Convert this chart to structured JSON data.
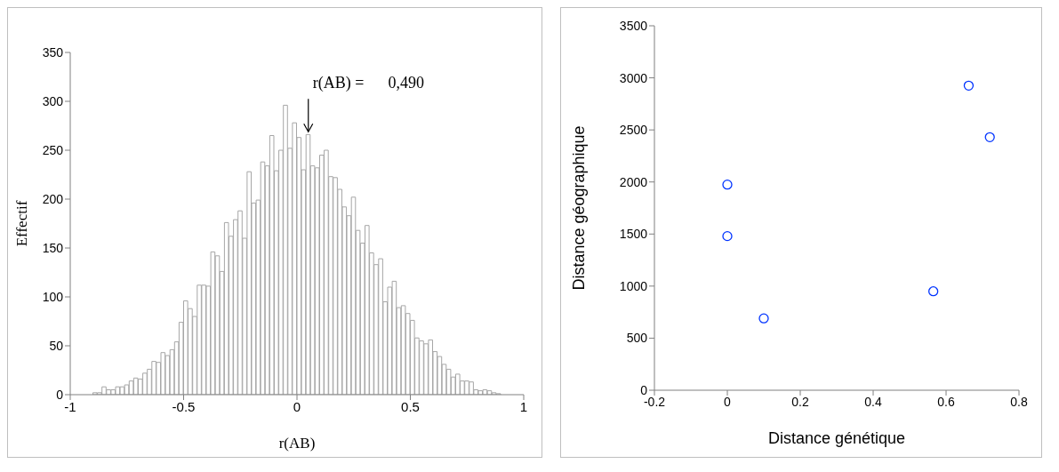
{
  "chart_data": [
    {
      "type": "histogram",
      "xlabel": "r(AB)",
      "ylabel": "Effectif",
      "color": "#a6a6a6",
      "bins": [
        -1,
        -0.98,
        -0.96,
        -0.94,
        -0.92,
        -0.9,
        -0.88,
        -0.86,
        -0.84,
        -0.82,
        -0.8,
        -0.78,
        -0.76,
        -0.74,
        -0.72,
        -0.7,
        -0.68,
        -0.66,
        -0.64,
        -0.62,
        -0.6,
        -0.58,
        -0.56,
        -0.54,
        -0.52,
        -0.5,
        -0.48,
        -0.46,
        -0.44,
        -0.42,
        -0.4,
        -0.38,
        -0.36,
        -0.34,
        -0.32,
        -0.3,
        -0.28,
        -0.26,
        -0.24,
        -0.22,
        -0.2,
        -0.18,
        -0.16,
        -0.14,
        -0.12,
        -0.1,
        -0.08,
        -0.06,
        -0.04,
        -0.02,
        0,
        0.02,
        0.04,
        0.06,
        0.08,
        0.1,
        0.12,
        0.14,
        0.16,
        0.18,
        0.2,
        0.22,
        0.24,
        0.26,
        0.28,
        0.3,
        0.32,
        0.34,
        0.36,
        0.38,
        0.4,
        0.42,
        0.44,
        0.46,
        0.48,
        0.5,
        0.52,
        0.54,
        0.56,
        0.58,
        0.6,
        0.62,
        0.64,
        0.66,
        0.68,
        0.7,
        0.72,
        0.74,
        0.76,
        0.78,
        0.8,
        0.82,
        0.84,
        0.86,
        0.88,
        0.9,
        0.92,
        0.94,
        0.96,
        0.98,
        1
      ],
      "values": [
        0,
        0,
        0,
        0,
        0,
        2,
        2,
        8,
        5,
        5,
        8,
        8,
        10,
        14,
        17,
        16,
        22,
        26,
        34,
        33,
        43,
        40,
        46,
        54,
        74,
        96,
        88,
        80,
        112,
        112,
        111,
        146,
        142,
        126,
        176,
        162,
        179,
        188,
        160,
        228,
        196,
        199,
        238,
        234,
        265,
        229,
        250,
        296,
        252,
        278,
        263,
        230,
        266,
        234,
        232,
        245,
        250,
        223,
        222,
        210,
        192,
        183,
        202,
        168,
        155,
        173,
        145,
        133,
        139,
        95,
        110,
        116,
        89,
        91,
        83,
        76,
        58,
        55,
        52,
        56,
        44,
        39,
        31,
        26,
        18,
        21,
        14,
        14,
        13,
        5,
        4,
        5,
        4,
        2,
        1,
        0,
        0,
        0,
        0,
        0
      ],
      "xlim": [
        -1,
        1
      ],
      "xticks": [
        -1,
        -0.5,
        0,
        0.5,
        1
      ],
      "ylim": [
        0,
        350
      ],
      "yticks": [
        0,
        50,
        100,
        150,
        200,
        250,
        300,
        350
      ],
      "grid": false,
      "annotations": [
        {
          "text": "r(AB) =      0,490",
          "x": 0.05,
          "y": 268
        }
      ]
    },
    {
      "type": "scatter",
      "xlabel": "Distance génétique",
      "ylabel": "Distance géographique",
      "series": [
        {
          "color": "#0033ff",
          "x": [
            0,
            0,
            0.1,
            0.565,
            0.662,
            0.72
          ],
          "values": [
            1975,
            1480,
            690,
            950,
            2925,
            2430
          ]
        }
      ],
      "marker": "circle",
      "xlim": [
        -0.2,
        0.8
      ],
      "xticks": [
        -0.2,
        0,
        0.2,
        0.4,
        0.6,
        0.8
      ],
      "ylim": [
        0,
        3500
      ],
      "yticks": [
        0,
        500,
        1000,
        1500,
        2000,
        2500,
        3000,
        3500
      ],
      "grid": false
    }
  ]
}
